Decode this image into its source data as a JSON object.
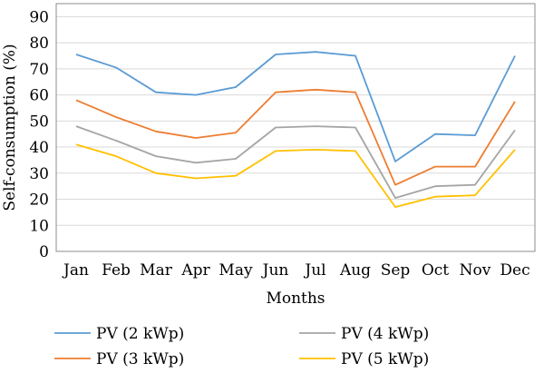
{
  "chart_data": {
    "type": "line",
    "title": "",
    "xlabel": "Months",
    "ylabel": "Self-consumption (%)",
    "ylim": [
      0,
      95
    ],
    "yticks": [
      0,
      10,
      20,
      30,
      40,
      50,
      60,
      70,
      80,
      90
    ],
    "grid": true,
    "legend_position": "bottom",
    "categories": [
      "Jan",
      "Feb",
      "Mar",
      "Apr",
      "May",
      "Jun",
      "Jul",
      "Aug",
      "Sep",
      "Oct",
      "Nov",
      "Dec"
    ],
    "series": [
      {
        "name": "PV (2 kWp)",
        "color": "#5b9bd5",
        "values": [
          75.5,
          70.5,
          61,
          60,
          63,
          75.5,
          76.5,
          75,
          34.5,
          45,
          44.5,
          75
        ]
      },
      {
        "name": "PV (3 kWp)",
        "color": "#ed7d31",
        "values": [
          58,
          51.5,
          46,
          43.5,
          45.5,
          61,
          62,
          61,
          25.5,
          32.5,
          32.5,
          57.5
        ]
      },
      {
        "name": "PV (4 kWp)",
        "color": "#a5a5a5",
        "values": [
          48,
          42.5,
          36.5,
          34,
          35.5,
          47.5,
          48,
          47.5,
          20.5,
          25,
          25.5,
          46.5
        ]
      },
      {
        "name": "PV (5 kWp)",
        "color": "#ffc000",
        "values": [
          41,
          36.5,
          30,
          28,
          29,
          38.5,
          39,
          38.5,
          17,
          21,
          21.5,
          39
        ]
      }
    ]
  }
}
